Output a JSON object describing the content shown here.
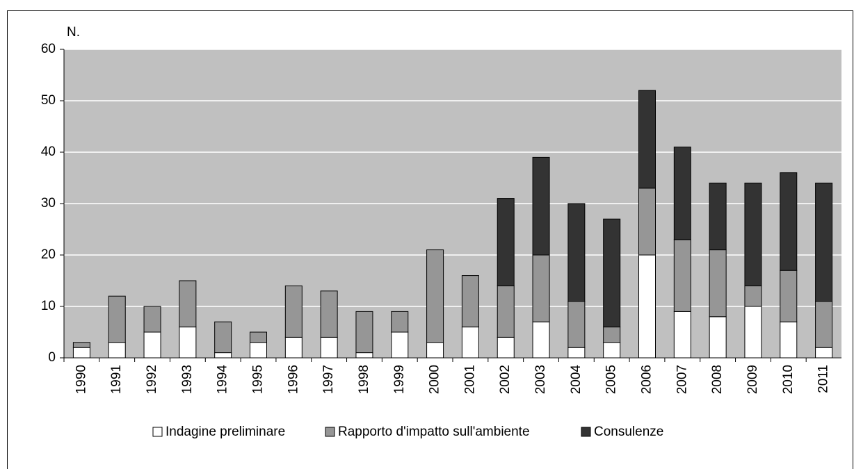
{
  "chart_data": {
    "type": "stacked-bar",
    "y_label": "N.",
    "categories": [
      "1990",
      "1991",
      "1992",
      "1993",
      "1994",
      "1995",
      "1996",
      "1997",
      "1998",
      "1999",
      "2000",
      "2001",
      "2002",
      "2003",
      "2004",
      "2005",
      "2006",
      "2007",
      "2008",
      "2009",
      "2010",
      "2011"
    ],
    "series": [
      {
        "name": "Indagine preliminare",
        "color": "#ffffff",
        "values": [
          2,
          3,
          5,
          6,
          1,
          3,
          4,
          4,
          1,
          5,
          3,
          6,
          4,
          7,
          2,
          3,
          20,
          9,
          8,
          10,
          7,
          2
        ]
      },
      {
        "name": "Rapporto d'impatto sull'ambiente",
        "color": "#969696",
        "values": [
          1,
          9,
          5,
          9,
          6,
          2,
          10,
          9,
          8,
          4,
          18,
          10,
          10,
          13,
          9,
          3,
          13,
          14,
          13,
          4,
          10,
          9
        ]
      },
      {
        "name": "Consulenze",
        "color": "#333333",
        "values": [
          0,
          0,
          0,
          0,
          0,
          0,
          0,
          0,
          0,
          0,
          0,
          0,
          17,
          19,
          19,
          21,
          19,
          18,
          13,
          20,
          19,
          23
        ]
      }
    ],
    "ylim": [
      0,
      60
    ],
    "yticks": [
      0,
      10,
      20,
      30,
      40,
      50,
      60
    ],
    "grid": true,
    "plot_background": "#c0c0c0",
    "legend": "bottom"
  }
}
